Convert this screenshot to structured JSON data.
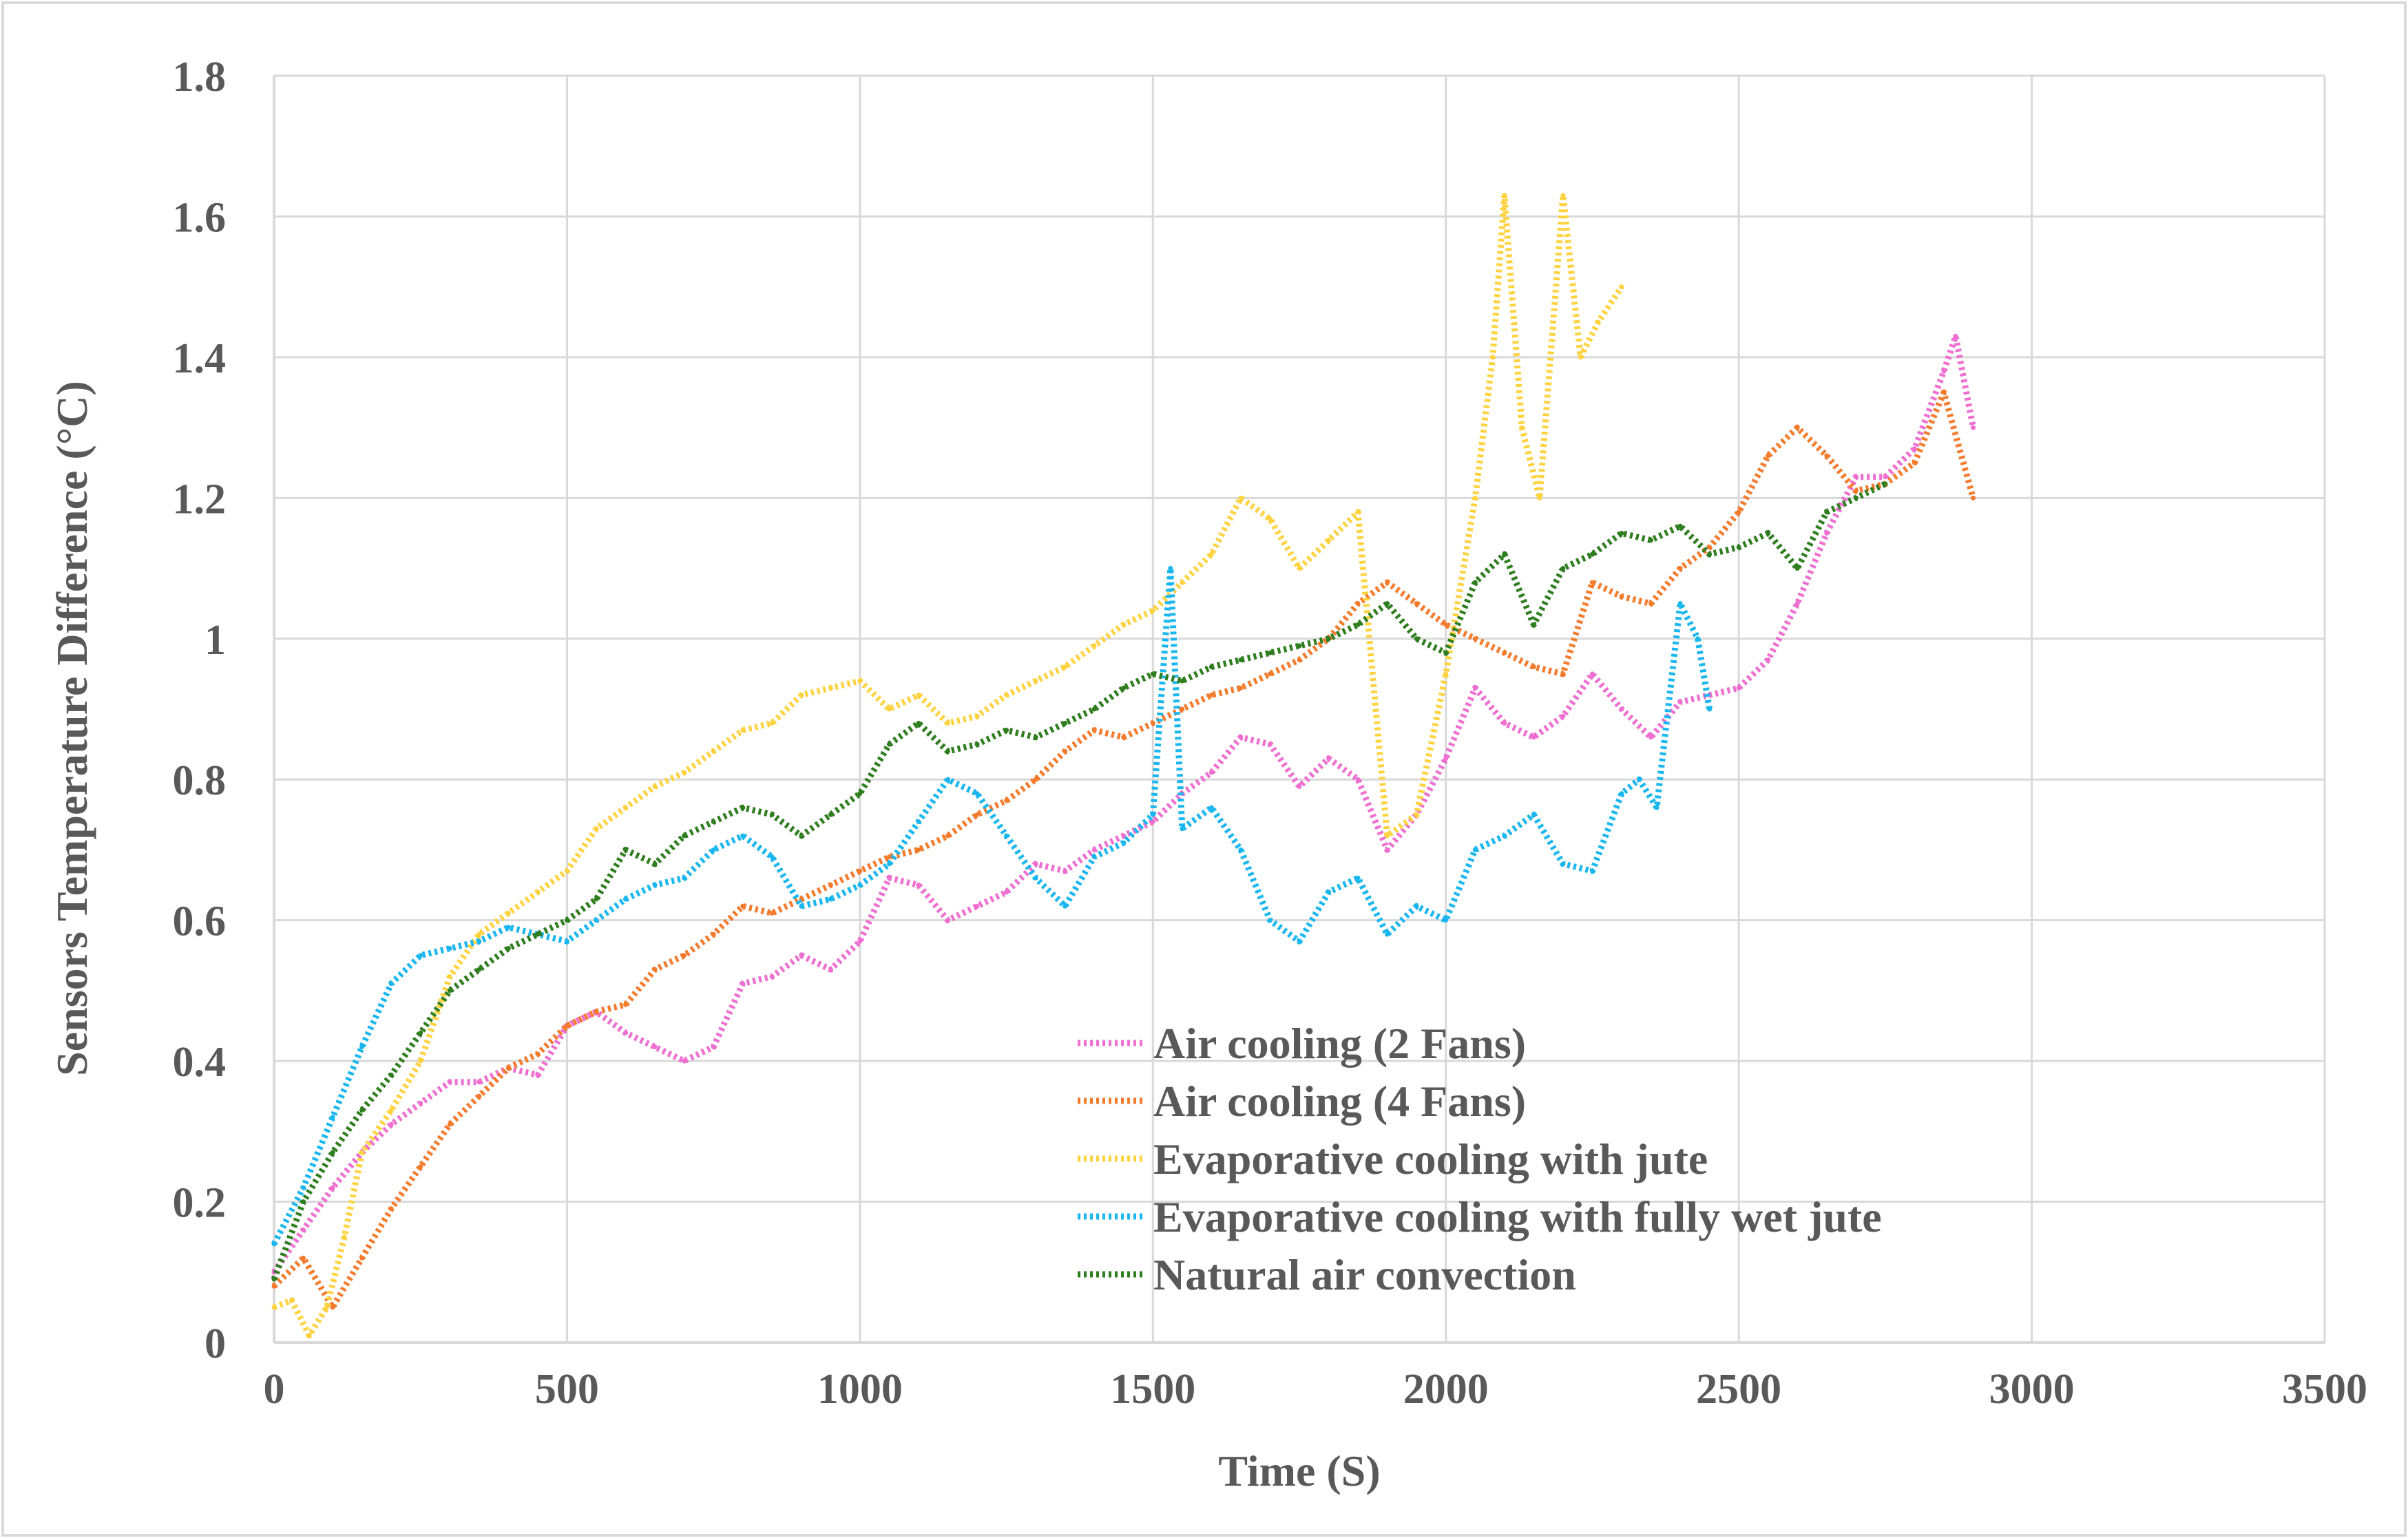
{
  "chart_data": {
    "type": "line",
    "title": "",
    "xlabel": "Time (S)",
    "ylabel": "Sensors Temperature Difference (°C)",
    "xlim": [
      0,
      3500
    ],
    "ylim": [
      0,
      1.8
    ],
    "x_ticks": [
      0,
      500,
      1000,
      1500,
      2000,
      2500,
      3000,
      3500
    ],
    "y_ticks": [
      0,
      0.2,
      0.4,
      0.6,
      0.8,
      1,
      1.2,
      1.4,
      1.6,
      1.8
    ],
    "x_tick_labels": [
      "0",
      "500",
      "1000",
      "1500",
      "2000",
      "2500",
      "3000",
      "3500"
    ],
    "y_tick_labels": [
      "0",
      "0.2",
      "0.4",
      "0.6",
      "0.8",
      "1",
      "1.2",
      "1.4",
      "1.6",
      "1.8"
    ],
    "grid": true,
    "legend_position": "bottom-center",
    "series": [
      {
        "name": "Air cooling (2 Fans)",
        "color": "#ee6fd0",
        "line_style": "dotted",
        "x": [
          0,
          50,
          100,
          150,
          200,
          250,
          300,
          350,
          400,
          450,
          500,
          550,
          600,
          650,
          700,
          750,
          800,
          850,
          900,
          950,
          1000,
          1050,
          1100,
          1150,
          1200,
          1250,
          1300,
          1350,
          1400,
          1450,
          1500,
          1550,
          1600,
          1650,
          1700,
          1750,
          1800,
          1850,
          1900,
          1950,
          2000,
          2050,
          2100,
          2150,
          2200,
          2250,
          2300,
          2350,
          2400,
          2450,
          2500,
          2550,
          2600,
          2650,
          2700,
          2750,
          2800,
          2850,
          2870,
          2900
        ],
        "y": [
          0.1,
          0.16,
          0.22,
          0.27,
          0.31,
          0.34,
          0.37,
          0.37,
          0.39,
          0.38,
          0.45,
          0.47,
          0.44,
          0.42,
          0.4,
          0.42,
          0.51,
          0.52,
          0.55,
          0.53,
          0.57,
          0.66,
          0.65,
          0.6,
          0.62,
          0.64,
          0.68,
          0.67,
          0.7,
          0.72,
          0.74,
          0.78,
          0.81,
          0.86,
          0.85,
          0.79,
          0.83,
          0.8,
          0.7,
          0.75,
          0.83,
          0.93,
          0.88,
          0.86,
          0.89,
          0.95,
          0.9,
          0.86,
          0.91,
          0.92,
          0.93,
          0.97,
          1.05,
          1.15,
          1.23,
          1.23,
          1.27,
          1.38,
          1.43,
          1.3
        ]
      },
      {
        "name": "Air cooling (4 Fans)",
        "color": "#f47a2c",
        "line_style": "dotted",
        "x": [
          0,
          50,
          100,
          150,
          200,
          250,
          300,
          350,
          400,
          450,
          500,
          550,
          600,
          650,
          700,
          750,
          800,
          850,
          900,
          950,
          1000,
          1050,
          1100,
          1150,
          1200,
          1250,
          1300,
          1350,
          1400,
          1450,
          1500,
          1550,
          1600,
          1650,
          1700,
          1750,
          1800,
          1850,
          1900,
          1950,
          2000,
          2050,
          2100,
          2150,
          2200,
          2250,
          2300,
          2350,
          2400,
          2450,
          2500,
          2550,
          2600,
          2650,
          2700,
          2750,
          2800,
          2850,
          2900
        ],
        "y": [
          0.08,
          0.12,
          0.05,
          0.12,
          0.19,
          0.25,
          0.31,
          0.35,
          0.39,
          0.41,
          0.45,
          0.47,
          0.48,
          0.53,
          0.55,
          0.58,
          0.62,
          0.61,
          0.63,
          0.65,
          0.67,
          0.69,
          0.7,
          0.72,
          0.75,
          0.77,
          0.8,
          0.84,
          0.87,
          0.86,
          0.88,
          0.9,
          0.92,
          0.93,
          0.95,
          0.97,
          1.0,
          1.05,
          1.08,
          1.05,
          1.02,
          1.0,
          0.98,
          0.96,
          0.95,
          1.08,
          1.06,
          1.05,
          1.1,
          1.13,
          1.18,
          1.26,
          1.3,
          1.26,
          1.21,
          1.22,
          1.25,
          1.35,
          1.2
        ]
      },
      {
        "name": "Evaporative cooling with jute",
        "color": "#ffd23f",
        "line_style": "dotted",
        "x": [
          0,
          30,
          60,
          90,
          120,
          150,
          200,
          250,
          300,
          350,
          400,
          450,
          500,
          550,
          600,
          650,
          700,
          750,
          800,
          850,
          900,
          950,
          1000,
          1050,
          1100,
          1150,
          1200,
          1250,
          1300,
          1350,
          1400,
          1450,
          1500,
          1550,
          1600,
          1650,
          1700,
          1750,
          1800,
          1850,
          1900,
          1950,
          2000,
          2050,
          2080,
          2100,
          2130,
          2160,
          2200,
          2230,
          2260,
          2300
        ],
        "y": [
          0.05,
          0.06,
          0.01,
          0.05,
          0.15,
          0.27,
          0.33,
          0.4,
          0.52,
          0.58,
          0.61,
          0.64,
          0.67,
          0.73,
          0.76,
          0.79,
          0.81,
          0.84,
          0.87,
          0.88,
          0.92,
          0.93,
          0.94,
          0.9,
          0.92,
          0.88,
          0.89,
          0.92,
          0.94,
          0.96,
          0.99,
          1.02,
          1.04,
          1.08,
          1.12,
          1.2,
          1.17,
          1.1,
          1.14,
          1.18,
          0.72,
          0.75,
          0.95,
          1.2,
          1.4,
          1.63,
          1.3,
          1.2,
          1.63,
          1.4,
          1.45,
          1.5
        ]
      },
      {
        "name": "Evaporative cooling with fully wet jute",
        "color": "#1ab6ef",
        "line_style": "dotted",
        "x": [
          0,
          50,
          100,
          150,
          200,
          250,
          300,
          350,
          400,
          450,
          500,
          550,
          600,
          650,
          700,
          750,
          800,
          850,
          900,
          950,
          1000,
          1050,
          1100,
          1150,
          1200,
          1250,
          1300,
          1350,
          1400,
          1450,
          1500,
          1530,
          1550,
          1600,
          1650,
          1700,
          1750,
          1800,
          1850,
          1900,
          1950,
          2000,
          2050,
          2100,
          2150,
          2200,
          2250,
          2300,
          2330,
          2360,
          2400,
          2430,
          2450
        ],
        "y": [
          0.14,
          0.22,
          0.32,
          0.42,
          0.51,
          0.55,
          0.56,
          0.57,
          0.59,
          0.58,
          0.57,
          0.6,
          0.63,
          0.65,
          0.66,
          0.7,
          0.72,
          0.69,
          0.62,
          0.63,
          0.65,
          0.68,
          0.74,
          0.8,
          0.78,
          0.72,
          0.66,
          0.62,
          0.69,
          0.71,
          0.75,
          1.1,
          0.73,
          0.76,
          0.7,
          0.6,
          0.57,
          0.64,
          0.66,
          0.58,
          0.62,
          0.6,
          0.7,
          0.72,
          0.75,
          0.68,
          0.67,
          0.78,
          0.8,
          0.76,
          1.05,
          1.0,
          0.9
        ]
      },
      {
        "name": "Natural air convection",
        "color": "#2e7d1e",
        "line_style": "dotted",
        "x": [
          0,
          50,
          100,
          150,
          200,
          250,
          300,
          350,
          400,
          450,
          500,
          550,
          600,
          650,
          700,
          750,
          800,
          850,
          900,
          950,
          1000,
          1050,
          1100,
          1150,
          1200,
          1250,
          1300,
          1350,
          1400,
          1450,
          1500,
          1550,
          1600,
          1650,
          1700,
          1750,
          1800,
          1850,
          1900,
          1950,
          2000,
          2050,
          2100,
          2150,
          2200,
          2250,
          2300,
          2350,
          2400,
          2450,
          2500,
          2550,
          2600,
          2650,
          2700,
          2750
        ],
        "y": [
          0.09,
          0.2,
          0.27,
          0.33,
          0.38,
          0.44,
          0.5,
          0.53,
          0.56,
          0.58,
          0.6,
          0.63,
          0.7,
          0.68,
          0.72,
          0.74,
          0.76,
          0.75,
          0.72,
          0.75,
          0.78,
          0.85,
          0.88,
          0.84,
          0.85,
          0.87,
          0.86,
          0.88,
          0.9,
          0.93,
          0.95,
          0.94,
          0.96,
          0.97,
          0.98,
          0.99,
          1.0,
          1.02,
          1.05,
          1.0,
          0.98,
          1.08,
          1.12,
          1.02,
          1.1,
          1.12,
          1.15,
          1.14,
          1.16,
          1.12,
          1.13,
          1.15,
          1.1,
          1.18,
          1.2,
          1.22
        ]
      }
    ]
  }
}
